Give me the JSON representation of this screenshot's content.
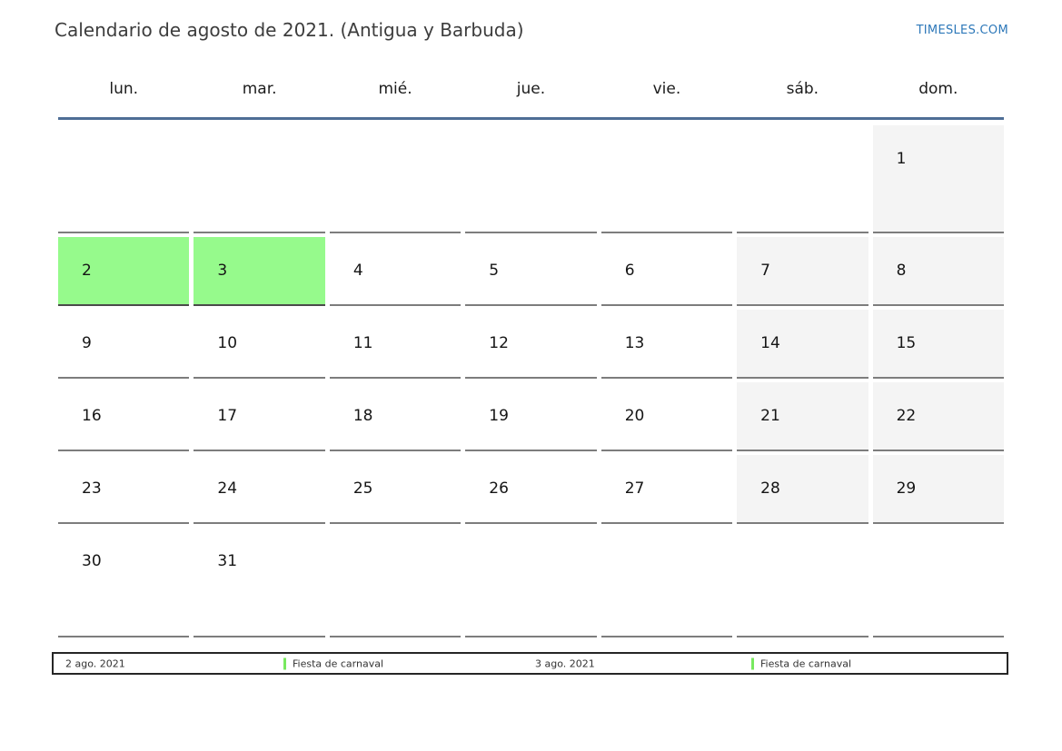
{
  "page": {
    "title": "Calendario de agosto de 2021. (Antigua y Barbuda)",
    "site_link": "TIMESLES.COM"
  },
  "calendar": {
    "month": "agosto",
    "year": "2021",
    "region": "Antigua y Barbuda",
    "weekdays": [
      "lun.",
      "mar.",
      "mié.",
      "jue.",
      "vie.",
      "sáb.",
      "dom."
    ],
    "weeks": [
      [
        {
          "day": "",
          "type": "empty"
        },
        {
          "day": "",
          "type": "empty"
        },
        {
          "day": "",
          "type": "empty"
        },
        {
          "day": "",
          "type": "empty"
        },
        {
          "day": "",
          "type": "empty"
        },
        {
          "day": "",
          "type": "empty"
        },
        {
          "day": "1",
          "type": "weekend"
        }
      ],
      [
        {
          "day": "2",
          "type": "holiday"
        },
        {
          "day": "3",
          "type": "holiday"
        },
        {
          "day": "4",
          "type": "normal"
        },
        {
          "day": "5",
          "type": "normal"
        },
        {
          "day": "6",
          "type": "normal"
        },
        {
          "day": "7",
          "type": "weekend"
        },
        {
          "day": "8",
          "type": "weekend"
        }
      ],
      [
        {
          "day": "9",
          "type": "normal"
        },
        {
          "day": "10",
          "type": "normal"
        },
        {
          "day": "11",
          "type": "normal"
        },
        {
          "day": "12",
          "type": "normal"
        },
        {
          "day": "13",
          "type": "normal"
        },
        {
          "day": "14",
          "type": "weekend"
        },
        {
          "day": "15",
          "type": "weekend"
        }
      ],
      [
        {
          "day": "16",
          "type": "normal"
        },
        {
          "day": "17",
          "type": "normal"
        },
        {
          "day": "18",
          "type": "normal"
        },
        {
          "day": "19",
          "type": "normal"
        },
        {
          "day": "20",
          "type": "normal"
        },
        {
          "day": "21",
          "type": "weekend"
        },
        {
          "day": "22",
          "type": "weekend"
        }
      ],
      [
        {
          "day": "23",
          "type": "normal"
        },
        {
          "day": "24",
          "type": "normal"
        },
        {
          "day": "25",
          "type": "normal"
        },
        {
          "day": "26",
          "type": "normal"
        },
        {
          "day": "27",
          "type": "normal"
        },
        {
          "day": "28",
          "type": "weekend"
        },
        {
          "day": "29",
          "type": "weekend"
        }
      ],
      [
        {
          "day": "30",
          "type": "normal"
        },
        {
          "day": "31",
          "type": "normal"
        },
        {
          "day": "",
          "type": "empty"
        },
        {
          "day": "",
          "type": "empty"
        },
        {
          "day": "",
          "type": "empty"
        },
        {
          "day": "",
          "type": "empty"
        },
        {
          "day": "",
          "type": "empty"
        }
      ]
    ]
  },
  "legend": {
    "entries": [
      {
        "date": "2 ago. 2021",
        "label": "Fiesta de carnaval"
      },
      {
        "date": "3 ago. 2021",
        "label": "Fiesta de carnaval"
      }
    ]
  },
  "colors": {
    "holiday_bg": "#96fa8c",
    "weekend_bg": "#f4f4f4",
    "divider": "#4e6e96",
    "link": "#2d78b9",
    "legend_marker": "#78e95f"
  }
}
